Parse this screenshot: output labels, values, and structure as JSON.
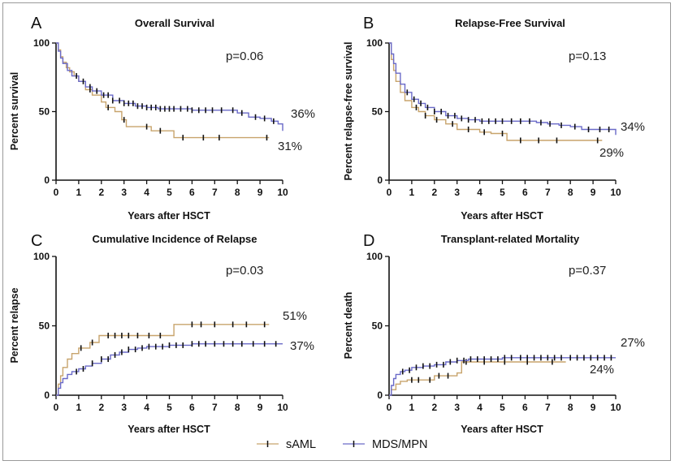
{
  "colors": {
    "sAML": "#c8a46c",
    "MDS/MPN": "#6a6ac8",
    "censor": "#111111",
    "axis": "#111111"
  },
  "legend": [
    {
      "name": "sAML",
      "color_key": "sAML"
    },
    {
      "name": "MDS/MPN",
      "color_key": "MDS/MPN"
    }
  ],
  "chart_data": [
    {
      "type": "line",
      "letter": "A",
      "title": "Overall Survival",
      "xlabel": "Years after HSCT",
      "ylabel": "Percent survival",
      "xlim": [
        0,
        10
      ],
      "ylim": [
        0,
        100
      ],
      "xticks": [
        "0",
        "1",
        "2",
        "3",
        "4",
        "5",
        "6",
        "7",
        "8",
        "9",
        "10"
      ],
      "yticks": [
        "0",
        "50",
        "100"
      ],
      "pvalue": "p=0.06",
      "series": [
        {
          "name": "sAML",
          "end_label": "31%",
          "x": [
            0,
            0.1,
            0.2,
            0.3,
            0.45,
            0.6,
            0.8,
            1.0,
            1.3,
            1.6,
            2.0,
            2.2,
            2.6,
            2.9,
            3.1,
            3.6,
            4.2,
            5.2,
            6.0,
            7.0,
            8.0,
            9.4
          ],
          "y": [
            100,
            95,
            90,
            86,
            82,
            79,
            76,
            72,
            66,
            62,
            57,
            53,
            50,
            44,
            39,
            39,
            36,
            31,
            31,
            31,
            31,
            31
          ],
          "censor": [
            1.5,
            2.3,
            3.0,
            4.0,
            4.6,
            5.6,
            6.5,
            7.2,
            9.3
          ]
        },
        {
          "name": "MDS/MPN",
          "end_label": "36%",
          "x": [
            0,
            0.1,
            0.2,
            0.3,
            0.5,
            0.7,
            1.0,
            1.3,
            1.6,
            2.0,
            2.5,
            3.0,
            3.5,
            4.0,
            4.5,
            5.0,
            6.0,
            7.0,
            7.5,
            8.0,
            8.5,
            9.0,
            9.5,
            9.8,
            10.0
          ],
          "y": [
            100,
            94,
            89,
            85,
            80,
            76,
            72,
            68,
            65,
            62,
            58,
            56,
            54,
            53,
            52,
            52,
            51,
            51,
            51,
            49,
            46,
            45,
            43,
            41,
            36
          ],
          "censor": [
            0.9,
            1.2,
            1.5,
            1.8,
            2.1,
            2.3,
            2.5,
            2.8,
            3.0,
            3.2,
            3.4,
            3.6,
            3.8,
            4.0,
            4.2,
            4.4,
            4.6,
            4.8,
            5.0,
            5.2,
            5.5,
            5.8,
            6.0,
            6.3,
            6.6,
            6.9,
            7.3,
            7.8,
            8.2,
            8.8,
            9.2,
            9.6
          ]
        }
      ]
    },
    {
      "type": "line",
      "letter": "B",
      "title": "Relapse-Free Survival",
      "xlabel": "Years after HSCT",
      "ylabel": "Percent relapse-free survival",
      "xlim": [
        0,
        10
      ],
      "ylim": [
        0,
        100
      ],
      "xticks": [
        "0",
        "1",
        "2",
        "3",
        "4",
        "5",
        "6",
        "7",
        "8",
        "9",
        "10"
      ],
      "yticks": [
        "0",
        "50",
        "100"
      ],
      "pvalue": "p=0.13",
      "series": [
        {
          "name": "sAML",
          "end_label": "29%",
          "x": [
            0,
            0.1,
            0.2,
            0.3,
            0.5,
            0.7,
            1.0,
            1.3,
            1.6,
            2.0,
            2.5,
            3.0,
            3.5,
            4.0,
            4.5,
            5.2,
            6.0,
            7.0,
            8.0,
            9.4
          ],
          "y": [
            100,
            88,
            80,
            72,
            64,
            58,
            53,
            50,
            47,
            44,
            41,
            37,
            37,
            35,
            34,
            29,
            29,
            29,
            29,
            29
          ],
          "censor": [
            1.2,
            1.6,
            2.1,
            2.8,
            3.5,
            4.2,
            5.0,
            5.8,
            6.6,
            7.4,
            9.2
          ]
        },
        {
          "name": "MDS/MPN",
          "end_label": "34%",
          "x": [
            0,
            0.1,
            0.2,
            0.3,
            0.5,
            0.7,
            1.0,
            1.3,
            1.6,
            2.0,
            2.5,
            3.0,
            3.5,
            4.0,
            5.0,
            6.0,
            6.5,
            7.0,
            7.5,
            8.0,
            8.5,
            9.0,
            9.5,
            10.0
          ],
          "y": [
            100,
            92,
            85,
            78,
            70,
            64,
            59,
            56,
            53,
            50,
            47,
            45,
            44,
            43,
            43,
            43,
            42,
            41,
            40,
            39,
            37,
            37,
            37,
            33
          ],
          "censor": [
            0.8,
            1.1,
            1.4,
            1.7,
            2.0,
            2.3,
            2.6,
            2.9,
            3.2,
            3.5,
            3.8,
            4.1,
            4.4,
            4.7,
            5.0,
            5.4,
            5.8,
            6.2,
            6.7,
            7.1,
            7.6,
            8.2,
            8.8,
            9.3,
            9.7
          ]
        }
      ]
    },
    {
      "type": "line",
      "letter": "C",
      "title": "Cumulative Incidence of Relapse",
      "xlabel": "Years after HSCT",
      "ylabel": "Percent relapse",
      "xlim": [
        0,
        10
      ],
      "ylim": [
        0,
        100
      ],
      "xticks": [
        "0",
        "1",
        "2",
        "3",
        "4",
        "5",
        "6",
        "7",
        "8",
        "9",
        "10"
      ],
      "yticks": [
        "0",
        "50",
        "100"
      ],
      "pvalue": "p=0.03",
      "series": [
        {
          "name": "sAML",
          "end_label": "51%",
          "x": [
            0,
            0.1,
            0.2,
            0.3,
            0.5,
            0.7,
            1.0,
            1.5,
            1.9,
            2.5,
            3.0,
            4.0,
            5.0,
            5.2,
            6.0,
            7.0,
            8.0,
            9.4
          ],
          "y": [
            0,
            8,
            14,
            20,
            26,
            30,
            34,
            38,
            43,
            43,
            43,
            43,
            43,
            51,
            51,
            51,
            51,
            51
          ],
          "censor": [
            1.1,
            1.6,
            2.3,
            2.6,
            2.9,
            3.2,
            3.6,
            4.1,
            4.6,
            6.0,
            6.4,
            7.0,
            7.8,
            8.4,
            9.2
          ]
        },
        {
          "name": "MDS/MPN",
          "end_label": "37%",
          "x": [
            0,
            0.1,
            0.2,
            0.3,
            0.5,
            0.7,
            1.0,
            1.3,
            1.6,
            2.0,
            2.4,
            2.8,
            3.2,
            3.6,
            4.0,
            5.0,
            6.0,
            7.0,
            8.0,
            9.0,
            10.0
          ],
          "y": [
            0,
            5,
            9,
            12,
            15,
            17,
            19,
            21,
            23,
            26,
            29,
            31,
            33,
            34,
            35,
            36,
            37,
            37,
            37,
            37,
            37
          ],
          "censor": [
            0.9,
            1.2,
            1.6,
            2.0,
            2.3,
            2.6,
            2.9,
            3.2,
            3.5,
            3.8,
            4.1,
            4.4,
            4.7,
            5.0,
            5.3,
            5.6,
            6.0,
            6.3,
            6.6,
            7.0,
            7.4,
            7.8,
            8.2,
            8.7,
            9.2,
            9.7
          ]
        }
      ]
    },
    {
      "type": "line",
      "letter": "D",
      "title": "Transplant-related Mortality",
      "xlabel": "Years after HSCT",
      "ylabel": "Percent death",
      "xlim": [
        0,
        10
      ],
      "ylim": [
        0,
        100
      ],
      "xticks": [
        "0",
        "1",
        "2",
        "3",
        "4",
        "5",
        "6",
        "7",
        "8",
        "9",
        "10"
      ],
      "yticks": [
        "0",
        "50",
        "100"
      ],
      "pvalue": "p=0.37",
      "series": [
        {
          "name": "sAML",
          "end_label": "24%",
          "x": [
            0,
            0.1,
            0.3,
            0.5,
            0.8,
            1.5,
            2.0,
            3.0,
            3.2,
            4.0,
            5.0,
            6.0,
            7.0,
            7.8
          ],
          "y": [
            0,
            4,
            8,
            10,
            11,
            11,
            14,
            16,
            24,
            24,
            24,
            24,
            24,
            24
          ],
          "censor": [
            1.0,
            1.3,
            1.8,
            2.2,
            2.6,
            3.4,
            4.2,
            5.1,
            6.1,
            7.2
          ]
        },
        {
          "name": "MDS/MPN",
          "end_label": "27%",
          "x": [
            0,
            0.1,
            0.2,
            0.3,
            0.5,
            0.7,
            1.0,
            1.5,
            2.0,
            2.5,
            3.0,
            3.5,
            4.0,
            5.0,
            6.0,
            7.0,
            8.0,
            9.0,
            10.0
          ],
          "y": [
            0,
            7,
            12,
            15,
            17,
            18,
            20,
            21,
            22,
            24,
            25,
            26,
            26,
            27,
            27,
            27,
            27,
            27,
            27
          ],
          "censor": [
            0.6,
            0.9,
            1.2,
            1.5,
            1.8,
            2.1,
            2.4,
            2.7,
            3.0,
            3.3,
            3.6,
            3.9,
            4.2,
            4.5,
            4.8,
            5.1,
            5.4,
            5.8,
            6.1,
            6.4,
            6.7,
            7.0,
            7.3,
            7.6,
            8.0,
            8.3,
            8.6,
            8.9,
            9.2,
            9.5,
            9.8
          ]
        }
      ]
    }
  ]
}
